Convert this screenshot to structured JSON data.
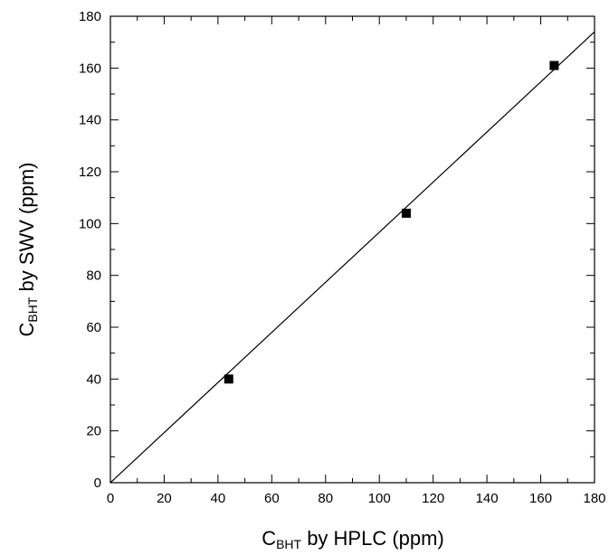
{
  "chart_data": {
    "type": "scatter",
    "xlabel": {
      "prefix": "C",
      "subscript": "BHT",
      "suffix": " by HPLC (ppm)"
    },
    "ylabel": {
      "prefix": "C",
      "subscript": "BHT",
      "suffix": " by SWV (ppm)"
    },
    "xlim": [
      0,
      180
    ],
    "ylim": [
      0,
      180
    ],
    "x_ticks": [
      0,
      20,
      40,
      60,
      80,
      100,
      120,
      140,
      160,
      180
    ],
    "y_ticks": [
      0,
      20,
      40,
      60,
      80,
      100,
      120,
      140,
      160,
      180
    ],
    "x_tick_labels": [
      "0",
      "20",
      "40",
      "60",
      "80",
      "100",
      "120",
      "140",
      "160",
      "180"
    ],
    "y_tick_labels": [
      "0",
      "20",
      "40",
      "60",
      "80",
      "100",
      "120",
      "140",
      "160",
      "180"
    ],
    "grid": false,
    "legend": "none",
    "series": [
      {
        "marker": "square",
        "color": "#000000",
        "x": [
          44,
          110,
          165
        ],
        "y": [
          40,
          104,
          161
        ]
      }
    ],
    "fit_line": {
      "x": [
        0,
        180
      ],
      "y": [
        0,
        174
      ],
      "color": "#000000"
    }
  }
}
